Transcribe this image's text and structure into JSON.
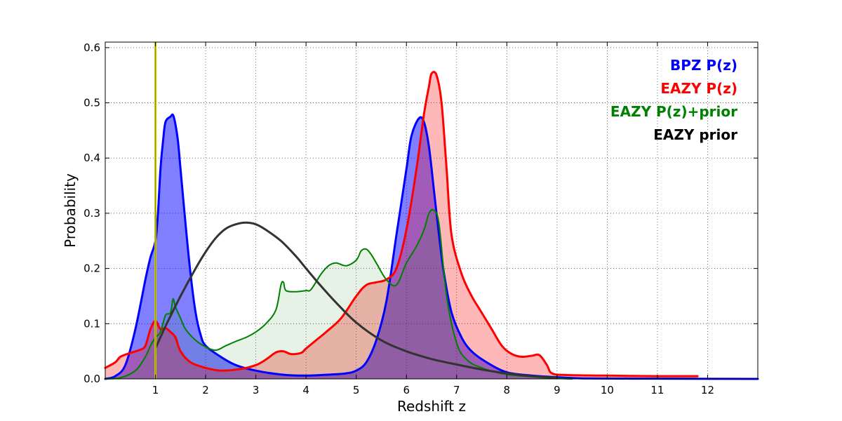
{
  "chart_data": {
    "type": "area",
    "xlabel": "Redshift z",
    "ylabel": "Probability",
    "xlim": [
      0,
      13
    ],
    "ylim": [
      0,
      0.61
    ],
    "xticks": [
      "1",
      "2",
      "3",
      "4",
      "5",
      "6",
      "7",
      "8",
      "9",
      "10",
      "11",
      "12"
    ],
    "xtick_values": [
      1,
      2,
      3,
      4,
      5,
      6,
      7,
      8,
      9,
      10,
      11,
      12
    ],
    "yticks": [
      "0.0",
      "0.1",
      "0.2",
      "0.3",
      "0.4",
      "0.5",
      "0.6"
    ],
    "ytick_values": [
      0,
      0.1,
      0.2,
      0.3,
      0.4,
      0.5,
      0.6
    ],
    "grid": true,
    "legend_placement": "top-right",
    "legend": [
      {
        "label": "BPZ P(z)",
        "color": "#0000ff"
      },
      {
        "label": "EAZY P(z)",
        "color": "#ff0000"
      },
      {
        "label": "EAZY P(z)+prior",
        "color": "#008000"
      },
      {
        "label": "EAZY prior",
        "color": "#000000"
      }
    ],
    "vertical_line": {
      "x": 1.0,
      "color": "#c8c800"
    },
    "series": [
      {
        "name": "BPZ P(z)",
        "color": "#0000ff",
        "fill": "#0000ff",
        "fill_opacity": 0.5,
        "line_width": 3,
        "points": [
          [
            0.0,
            0.0
          ],
          [
            0.2,
            0.005
          ],
          [
            0.4,
            0.025
          ],
          [
            0.6,
            0.09
          ],
          [
            0.8,
            0.18
          ],
          [
            0.9,
            0.22
          ],
          [
            1.0,
            0.25
          ],
          [
            1.05,
            0.3
          ],
          [
            1.1,
            0.38
          ],
          [
            1.15,
            0.43
          ],
          [
            1.2,
            0.465
          ],
          [
            1.3,
            0.475
          ],
          [
            1.35,
            0.478
          ],
          [
            1.4,
            0.46
          ],
          [
            1.45,
            0.43
          ],
          [
            1.5,
            0.38
          ],
          [
            1.6,
            0.28
          ],
          [
            1.7,
            0.19
          ],
          [
            1.8,
            0.12
          ],
          [
            1.9,
            0.08
          ],
          [
            2.0,
            0.06
          ],
          [
            2.3,
            0.04
          ],
          [
            2.6,
            0.025
          ],
          [
            3.0,
            0.015
          ],
          [
            3.5,
            0.008
          ],
          [
            4.0,
            0.006
          ],
          [
            4.5,
            0.008
          ],
          [
            4.8,
            0.01
          ],
          [
            5.0,
            0.015
          ],
          [
            5.2,
            0.03
          ],
          [
            5.4,
            0.07
          ],
          [
            5.6,
            0.14
          ],
          [
            5.8,
            0.26
          ],
          [
            6.0,
            0.38
          ],
          [
            6.1,
            0.44
          ],
          [
            6.25,
            0.472
          ],
          [
            6.35,
            0.465
          ],
          [
            6.45,
            0.42
          ],
          [
            6.55,
            0.34
          ],
          [
            6.65,
            0.26
          ],
          [
            6.75,
            0.19
          ],
          [
            6.9,
            0.12
          ],
          [
            7.1,
            0.075
          ],
          [
            7.3,
            0.05
          ],
          [
            7.6,
            0.03
          ],
          [
            8.0,
            0.012
          ],
          [
            8.5,
            0.006
          ],
          [
            9.0,
            0.003
          ],
          [
            9.5,
            0.001
          ],
          [
            10.5,
            0.0005
          ],
          [
            11.5,
            0.0003
          ],
          [
            13.0,
            0.0
          ]
        ]
      },
      {
        "name": "EAZY P(z)",
        "color": "#ff0000",
        "fill": "#ff0000",
        "fill_opacity": 0.28,
        "line_width": 3,
        "points": [
          [
            0.0,
            0.02
          ],
          [
            0.2,
            0.03
          ],
          [
            0.3,
            0.04
          ],
          [
            0.5,
            0.047
          ],
          [
            0.7,
            0.053
          ],
          [
            0.8,
            0.06
          ],
          [
            0.9,
            0.09
          ],
          [
            1.0,
            0.105
          ],
          [
            1.1,
            0.09
          ],
          [
            1.2,
            0.092
          ],
          [
            1.3,
            0.085
          ],
          [
            1.4,
            0.075
          ],
          [
            1.5,
            0.05
          ],
          [
            1.7,
            0.03
          ],
          [
            2.0,
            0.02
          ],
          [
            2.3,
            0.015
          ],
          [
            2.7,
            0.018
          ],
          [
            3.0,
            0.025
          ],
          [
            3.2,
            0.035
          ],
          [
            3.4,
            0.048
          ],
          [
            3.55,
            0.05
          ],
          [
            3.7,
            0.045
          ],
          [
            3.9,
            0.047
          ],
          [
            4.0,
            0.055
          ],
          [
            4.2,
            0.07
          ],
          [
            4.4,
            0.085
          ],
          [
            4.7,
            0.11
          ],
          [
            5.0,
            0.15
          ],
          [
            5.2,
            0.17
          ],
          [
            5.4,
            0.175
          ],
          [
            5.6,
            0.18
          ],
          [
            5.8,
            0.2
          ],
          [
            6.0,
            0.27
          ],
          [
            6.2,
            0.38
          ],
          [
            6.35,
            0.48
          ],
          [
            6.45,
            0.53
          ],
          [
            6.5,
            0.553
          ],
          [
            6.6,
            0.55
          ],
          [
            6.7,
            0.5
          ],
          [
            6.8,
            0.38
          ],
          [
            6.9,
            0.26
          ],
          [
            7.1,
            0.19
          ],
          [
            7.3,
            0.15
          ],
          [
            7.5,
            0.12
          ],
          [
            7.7,
            0.09
          ],
          [
            7.9,
            0.06
          ],
          [
            8.1,
            0.045
          ],
          [
            8.3,
            0.04
          ],
          [
            8.5,
            0.042
          ],
          [
            8.65,
            0.043
          ],
          [
            8.8,
            0.025
          ],
          [
            8.9,
            0.01
          ],
          [
            9.2,
            0.007
          ],
          [
            10.0,
            0.006
          ],
          [
            11.0,
            0.005
          ],
          [
            11.8,
            0.005
          ]
        ]
      },
      {
        "name": "EAZY P(z)+prior",
        "color": "#008000",
        "fill": "#008000",
        "fill_opacity": 0.1,
        "line_width": 2,
        "points": [
          [
            0.0,
            0.0
          ],
          [
            0.3,
            0.002
          ],
          [
            0.6,
            0.015
          ],
          [
            0.8,
            0.04
          ],
          [
            0.9,
            0.06
          ],
          [
            1.0,
            0.075
          ],
          [
            1.1,
            0.085
          ],
          [
            1.2,
            0.115
          ],
          [
            1.3,
            0.12
          ],
          [
            1.35,
            0.145
          ],
          [
            1.4,
            0.13
          ],
          [
            1.5,
            0.11
          ],
          [
            1.6,
            0.09
          ],
          [
            1.8,
            0.07
          ],
          [
            2.0,
            0.058
          ],
          [
            2.2,
            0.052
          ],
          [
            2.4,
            0.06
          ],
          [
            2.6,
            0.068
          ],
          [
            2.8,
            0.075
          ],
          [
            3.0,
            0.085
          ],
          [
            3.2,
            0.1
          ],
          [
            3.4,
            0.125
          ],
          [
            3.5,
            0.17
          ],
          [
            3.55,
            0.175
          ],
          [
            3.6,
            0.16
          ],
          [
            3.8,
            0.158
          ],
          [
            4.0,
            0.16
          ],
          [
            4.1,
            0.162
          ],
          [
            4.3,
            0.19
          ],
          [
            4.45,
            0.205
          ],
          [
            4.6,
            0.21
          ],
          [
            4.8,
            0.205
          ],
          [
            5.0,
            0.215
          ],
          [
            5.1,
            0.232
          ],
          [
            5.2,
            0.235
          ],
          [
            5.3,
            0.225
          ],
          [
            5.4,
            0.21
          ],
          [
            5.6,
            0.18
          ],
          [
            5.8,
            0.17
          ],
          [
            6.0,
            0.21
          ],
          [
            6.2,
            0.24
          ],
          [
            6.35,
            0.27
          ],
          [
            6.45,
            0.3
          ],
          [
            6.55,
            0.305
          ],
          [
            6.65,
            0.28
          ],
          [
            6.8,
            0.15
          ],
          [
            7.0,
            0.065
          ],
          [
            7.2,
            0.035
          ],
          [
            7.5,
            0.02
          ],
          [
            8.0,
            0.008
          ],
          [
            8.5,
            0.004
          ],
          [
            9.0,
            0.001
          ],
          [
            9.3,
            0.0
          ]
        ]
      },
      {
        "name": "EAZY prior",
        "color": "#333333",
        "line_width": 3,
        "points": [
          [
            1.0,
            0.055
          ],
          [
            1.2,
            0.095
          ],
          [
            1.5,
            0.15
          ],
          [
            1.8,
            0.2
          ],
          [
            2.0,
            0.23
          ],
          [
            2.2,
            0.255
          ],
          [
            2.4,
            0.272
          ],
          [
            2.6,
            0.28
          ],
          [
            2.8,
            0.283
          ],
          [
            3.0,
            0.28
          ],
          [
            3.2,
            0.27
          ],
          [
            3.5,
            0.25
          ],
          [
            3.8,
            0.222
          ],
          [
            4.0,
            0.2
          ],
          [
            4.3,
            0.168
          ],
          [
            4.6,
            0.138
          ],
          [
            5.0,
            0.102
          ],
          [
            5.5,
            0.07
          ],
          [
            6.0,
            0.05
          ],
          [
            6.5,
            0.036
          ],
          [
            7.0,
            0.026
          ],
          [
            7.5,
            0.017
          ],
          [
            8.0,
            0.01
          ],
          [
            8.5,
            0.005
          ],
          [
            9.0,
            0.002
          ]
        ]
      }
    ]
  }
}
